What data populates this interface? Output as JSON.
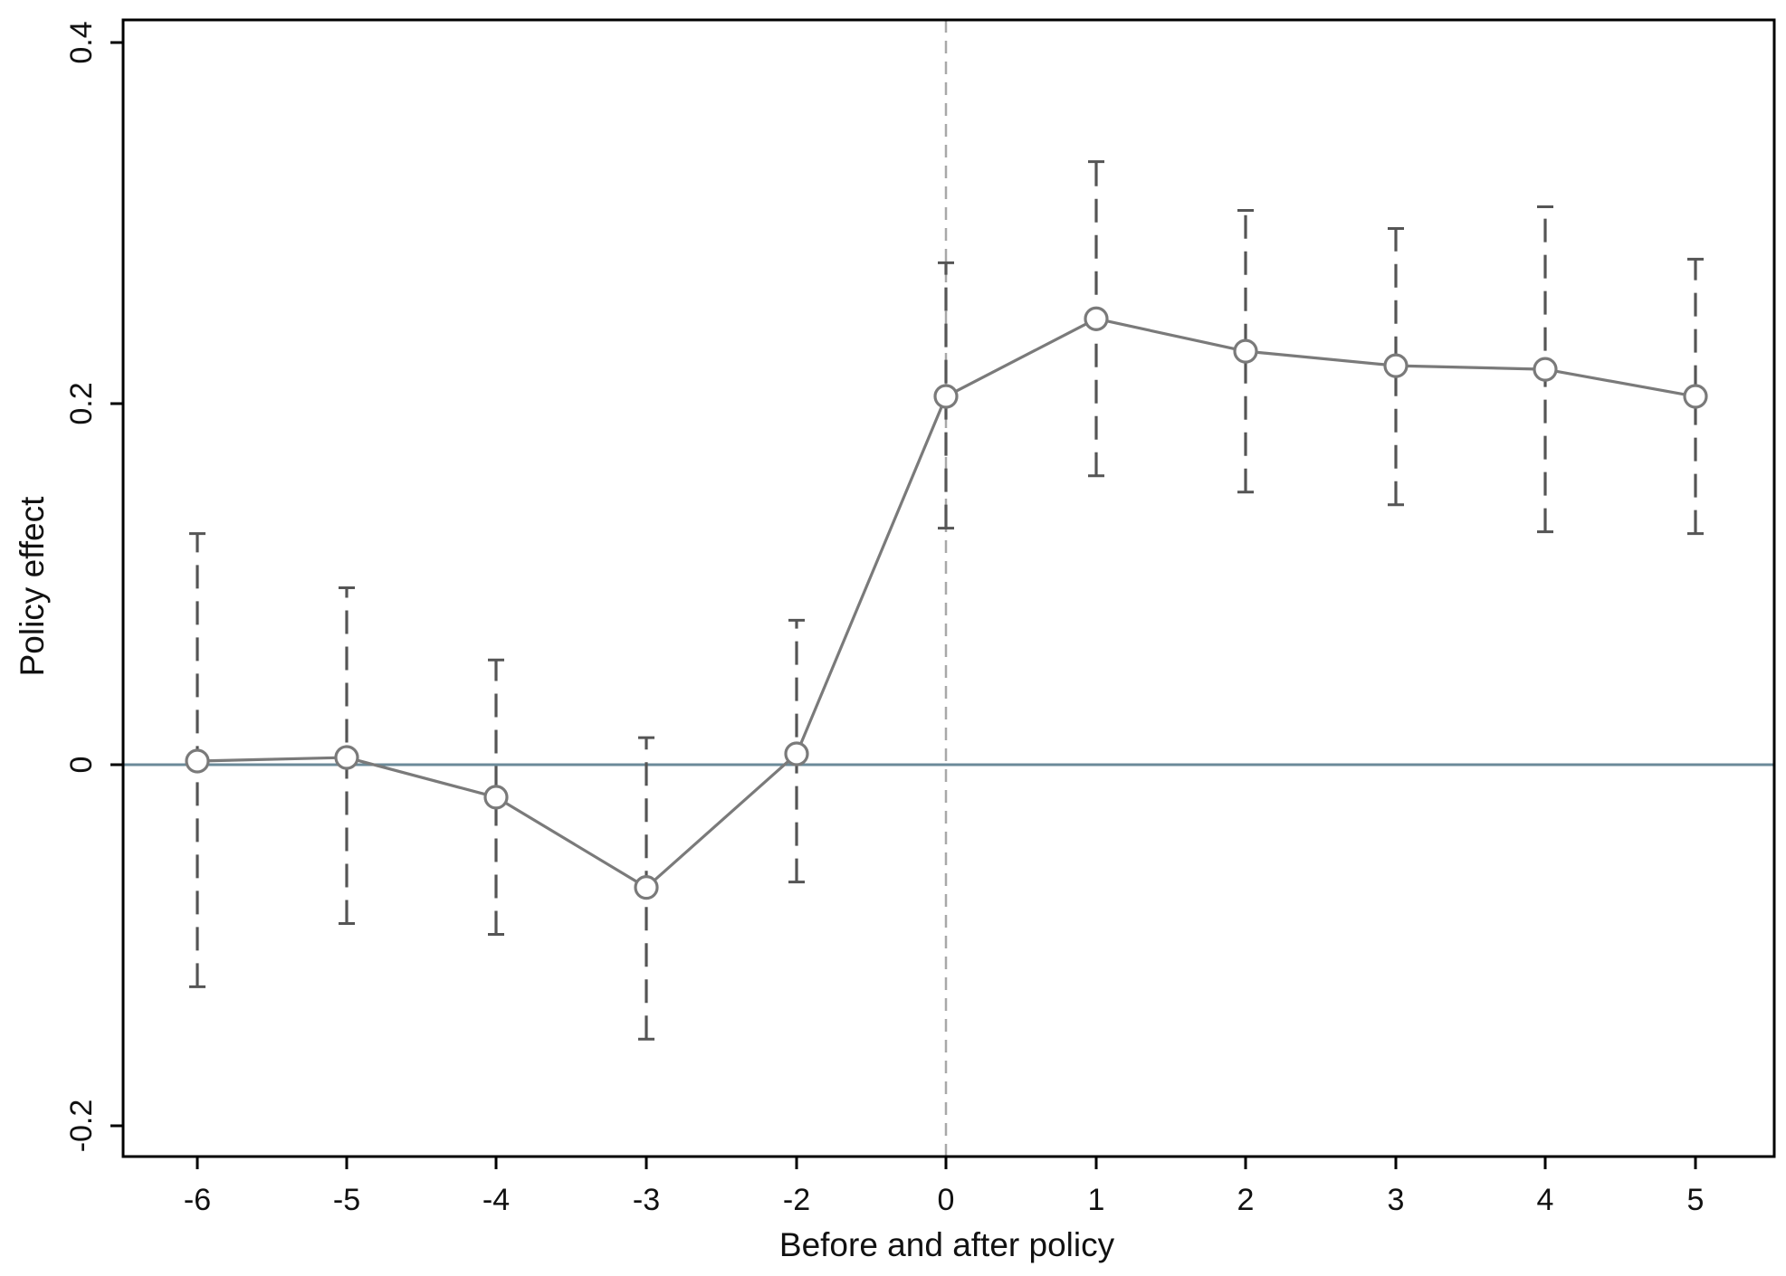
{
  "chart_data": {
    "type": "scatter",
    "title": "",
    "xlabel": "Before and after policy",
    "ylabel": "Policy effect",
    "x_ticks": [
      "-6",
      "-5",
      "-4",
      "-3",
      "-2",
      "0",
      "1",
      "2",
      "3",
      "4",
      "5"
    ],
    "y_ticks": [
      {
        "value": -0.2,
        "label": "-0.2"
      },
      {
        "value": 0,
        "label": "0"
      },
      {
        "value": 0.2,
        "label": "0.2"
      },
      {
        "value": 0.4,
        "label": "0.4"
      }
    ],
    "ylim": [
      -0.215,
      0.42
    ],
    "series": [
      {
        "x": [
          -6,
          -5,
          -4,
          -3,
          -2,
          0,
          1,
          2,
          3,
          4,
          5
        ],
        "estimate": [
          0.002,
          0.004,
          -0.018,
          -0.068,
          0.006,
          0.204,
          0.247,
          0.229,
          0.221,
          0.219,
          0.204
        ],
        "ci_lower": [
          -0.123,
          -0.088,
          -0.094,
          -0.152,
          -0.065,
          0.131,
          0.16,
          0.151,
          0.144,
          0.129,
          0.128
        ],
        "ci_upper": [
          0.128,
          0.098,
          0.058,
          0.015,
          0.08,
          0.278,
          0.334,
          0.307,
          0.297,
          0.309,
          0.28
        ]
      }
    ],
    "reference_lines": {
      "horizontal_y": 0,
      "vertical_x": 0
    },
    "grid": false,
    "colors": {
      "series": "#7a7a7a",
      "error_bars": "#555555",
      "zero_line": "#6b8a99",
      "policy_line": "#a8a8a8",
      "frame": "#000000"
    }
  }
}
